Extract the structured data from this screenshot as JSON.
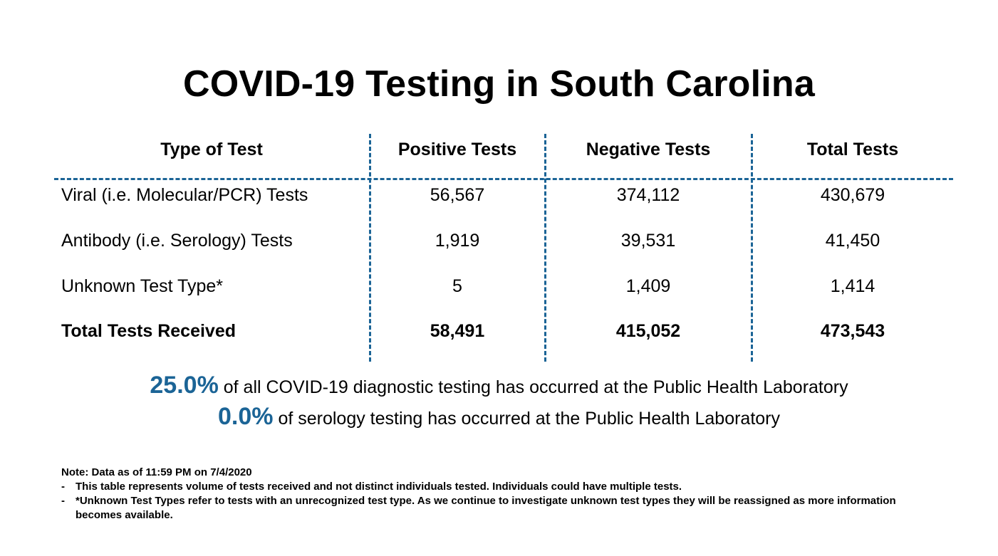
{
  "title": "COVID-19 Testing in South Carolina",
  "table": {
    "headers": [
      "Type of Test",
      "Positive Tests",
      "Negative Tests",
      "Total Tests"
    ],
    "rows": [
      {
        "type": "Viral (i.e. Molecular/PCR) Tests",
        "positive": "56,567",
        "negative": "374,112",
        "total": "430,679"
      },
      {
        "type": "Antibody (i.e. Serology) Tests",
        "positive": "1,919",
        "negative": "39,531",
        "total": "41,450"
      },
      {
        "type": "Unknown Test Type*",
        "positive": "5",
        "negative": "1,409",
        "total": "1,414"
      },
      {
        "type": "Total Tests Received",
        "positive": "58,491",
        "negative": "415,052",
        "total": "473,543"
      }
    ]
  },
  "summary": [
    {
      "percent": "25.0%",
      "text": "of all COVID-19 diagnostic testing has occurred at the Public Health Laboratory"
    },
    {
      "percent": "0.0%",
      "text": "of serology testing has occurred at the Public Health Laboratory"
    }
  ],
  "notes": {
    "heading": "Note: Data as of 11:59 PM on 7/4/2020",
    "bullet_marker": "-",
    "items": [
      "This table represents volume of tests received and not distinct individuals tested. Individuals could have multiple tests.",
      "*Unknown Test Types refer to tests with an unrecognized test type. As we continue to investigate unknown test types they will be reassigned as more information becomes available."
    ]
  },
  "colors": {
    "accent": "#1b6496",
    "text": "#000000",
    "background": "#ffffff"
  }
}
